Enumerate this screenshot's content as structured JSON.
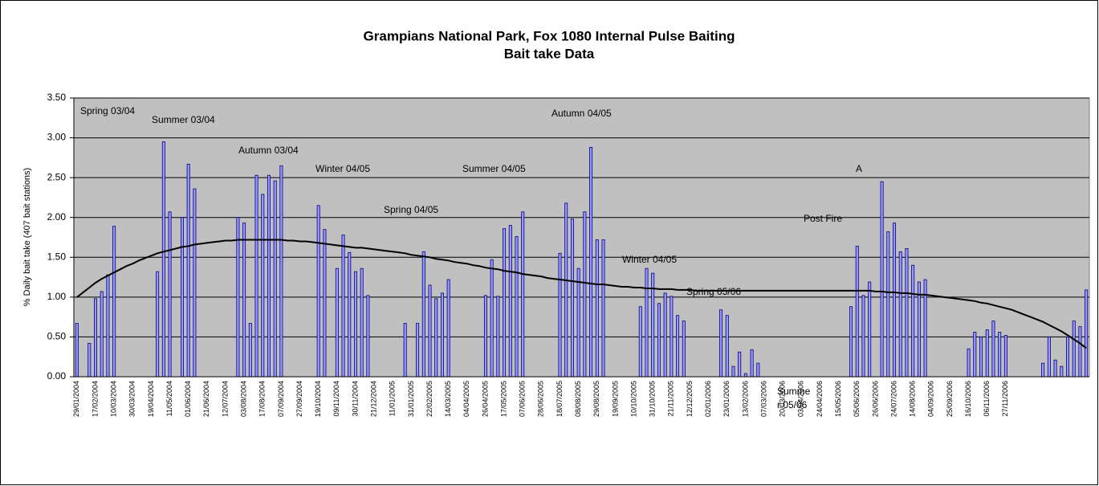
{
  "chart_data": {
    "type": "bar",
    "title": "Grampians National Park, Fox 1080 Internal Pulse Baiting",
    "subtitle": "Bait take Data",
    "y_label": "% Daily bait take (407 bait stations)",
    "color": "#9999ff",
    "edge_color": "#000080",
    "plot_background": "#c0c0c0",
    "grid": true,
    "ylim": [
      0,
      3.5
    ],
    "yticks": [
      {
        "value": 0,
        "label": "0.00"
      },
      {
        "value": 0.5,
        "label": "0.50"
      },
      {
        "value": 1,
        "label": "1.00"
      },
      {
        "value": 1.5,
        "label": "1.50"
      },
      {
        "value": 2,
        "label": "2.00"
      },
      {
        "value": 2.5,
        "label": "2.50"
      },
      {
        "value": 3,
        "label": "3.00"
      },
      {
        "value": 3.5,
        "label": "3.50"
      }
    ],
    "categories": [
      "29/01/2004",
      null,
      null,
      "17/02/2004",
      null,
      null,
      "10/03/2004",
      null,
      null,
      "30/03/2004",
      null,
      null,
      "19/04/2004",
      null,
      null,
      "11/05/2004",
      null,
      null,
      "01/06/2004",
      null,
      null,
      "21/06/2004",
      null,
      null,
      "12/07/2004",
      null,
      null,
      "03/08/2004",
      null,
      null,
      "17/08/2004",
      null,
      null,
      "07/09/2004",
      null,
      null,
      "27/09/2004",
      null,
      null,
      "19/10/2004",
      null,
      null,
      "09/11/2004",
      null,
      null,
      "30/11/2004",
      null,
      null,
      "21/12/2004",
      null,
      null,
      "11/01/2005",
      null,
      null,
      "31/01/2005",
      null,
      null,
      "22/02/2005",
      null,
      null,
      "14/03/2005",
      null,
      null,
      "04/04/2005",
      null,
      null,
      "26/04/2005",
      null,
      null,
      "17/05/2005",
      null,
      null,
      "07/06/2005",
      null,
      null,
      "28/06/2005",
      null,
      null,
      "18/07/2005",
      null,
      null,
      "08/08/2005",
      null,
      null,
      "29/08/2005",
      null,
      null,
      "19/09/2005",
      null,
      null,
      "10/10/2005",
      null,
      null,
      "31/10/2005",
      null,
      null,
      "21/11/2005",
      null,
      null,
      "12/12/2005",
      null,
      null,
      "02/01/2006",
      null,
      null,
      "23/01/2006",
      null,
      null,
      "13/02/2006",
      null,
      null,
      "07/03/2006",
      null,
      null,
      "20/03/2006",
      null,
      null,
      "03/04/2006",
      null,
      null,
      "24/04/2006",
      null,
      null,
      "15/05/2006",
      null,
      null,
      "05/06/2006",
      null,
      null,
      "26/06/2006",
      null,
      null,
      "24/07/2006",
      null,
      null,
      "14/08/2006",
      null,
      null,
      "04/09/2006",
      null,
      null,
      "25/09/2006",
      null,
      null,
      "16/10/2006",
      null,
      null,
      "06/11/2006",
      null,
      null,
      "27/11/2006",
      null,
      null,
      null,
      null,
      null,
      null,
      null,
      null,
      null,
      null,
      null,
      null,
      null
    ],
    "values": [
      0.67,
      null,
      0.42,
      0.98,
      1.07,
      1.28,
      1.89,
      null,
      null,
      null,
      null,
      null,
      null,
      1.32,
      2.95,
      2.07,
      null,
      2.0,
      2.67,
      2.36,
      null,
      null,
      null,
      null,
      null,
      null,
      2.0,
      1.93,
      0.67,
      2.53,
      2.29,
      2.53,
      2.46,
      2.65,
      null,
      null,
      null,
      null,
      null,
      2.15,
      1.85,
      null,
      1.36,
      1.78,
      1.56,
      1.32,
      1.36,
      1.02,
      null,
      null,
      null,
      null,
      null,
      0.67,
      null,
      0.67,
      1.57,
      1.15,
      0.98,
      1.05,
      1.22,
      null,
      null,
      null,
      null,
      null,
      1.02,
      1.47,
      1.01,
      1.86,
      1.9,
      1.76,
      2.07,
      null,
      null,
      null,
      null,
      null,
      1.55,
      2.18,
      1.98,
      1.36,
      2.07,
      2.88,
      1.72,
      1.72,
      null,
      null,
      null,
      null,
      null,
      0.88,
      1.36,
      1.3,
      0.92,
      1.05,
      1.01,
      0.77,
      0.7,
      null,
      null,
      null,
      null,
      null,
      0.84,
      0.77,
      0.13,
      0.31,
      0.04,
      0.34,
      0.17,
      null,
      null,
      null,
      null,
      null,
      null,
      null,
      null,
      null,
      null,
      null,
      null,
      null,
      null,
      0.88,
      1.64,
      1.02,
      1.19,
      null,
      2.45,
      1.82,
      1.93,
      1.57,
      1.61,
      1.4,
      1.19,
      1.22,
      null,
      null,
      null,
      null,
      null,
      null,
      0.35,
      0.56,
      0.5,
      0.59,
      0.7,
      0.56,
      0.52,
      null,
      null,
      null,
      null,
      null,
      0.17,
      0.5,
      0.21,
      0.13,
      0.5,
      0.7,
      0.63,
      1.09
    ],
    "trendline": {
      "color": "#000000",
      "values": [
        1.0,
        1.06,
        1.12,
        1.18,
        1.23,
        1.27,
        1.31,
        1.35,
        1.39,
        1.42,
        1.46,
        1.49,
        1.52,
        1.55,
        1.57,
        1.59,
        1.61,
        1.63,
        1.64,
        1.66,
        1.67,
        1.68,
        1.69,
        1.7,
        1.71,
        1.71,
        1.72,
        1.72,
        1.72,
        1.72,
        1.72,
        1.72,
        1.72,
        1.72,
        1.71,
        1.71,
        1.7,
        1.7,
        1.69,
        1.68,
        1.67,
        1.66,
        1.65,
        1.64,
        1.63,
        1.62,
        1.62,
        1.61,
        1.6,
        1.59,
        1.58,
        1.57,
        1.56,
        1.55,
        1.53,
        1.52,
        1.51,
        1.5,
        1.48,
        1.47,
        1.46,
        1.44,
        1.43,
        1.42,
        1.4,
        1.39,
        1.37,
        1.36,
        1.35,
        1.33,
        1.32,
        1.31,
        1.29,
        1.28,
        1.27,
        1.26,
        1.24,
        1.23,
        1.22,
        1.21,
        1.2,
        1.19,
        1.18,
        1.17,
        1.16,
        1.16,
        1.15,
        1.14,
        1.13,
        1.13,
        1.12,
        1.12,
        1.11,
        1.11,
        1.1,
        1.1,
        1.1,
        1.09,
        1.09,
        1.09,
        1.08,
        1.08,
        1.08,
        1.08,
        1.08,
        1.08,
        1.08,
        1.08,
        1.08,
        1.08,
        1.08,
        1.08,
        1.08,
        1.08,
        1.08,
        1.08,
        1.08,
        1.08,
        1.08,
        1.08,
        1.08,
        1.08,
        1.08,
        1.08,
        1.08,
        1.08,
        1.08,
        1.08,
        1.08,
        1.07,
        1.07,
        1.06,
        1.06,
        1.05,
        1.05,
        1.04,
        1.03,
        1.03,
        1.02,
        1.01,
        1.0,
        0.99,
        0.98,
        0.97,
        0.96,
        0.95,
        0.93,
        0.92,
        0.9,
        0.88,
        0.86,
        0.84,
        0.81,
        0.78,
        0.75,
        0.72,
        0.69,
        0.65,
        0.61,
        0.57,
        0.52,
        0.47,
        0.42,
        0.36
      ]
    },
    "annotations": [
      "Spring 03/04",
      "Summer 03/04",
      "Autumn 03/04",
      "Winter 04/05",
      "Summer 04/05",
      "Spring 04/05",
      "Autumn 04/05",
      "A",
      "Post Fire",
      "Winter 04/05",
      "Spring 05/06",
      "Summe",
      "r 05/06"
    ]
  }
}
